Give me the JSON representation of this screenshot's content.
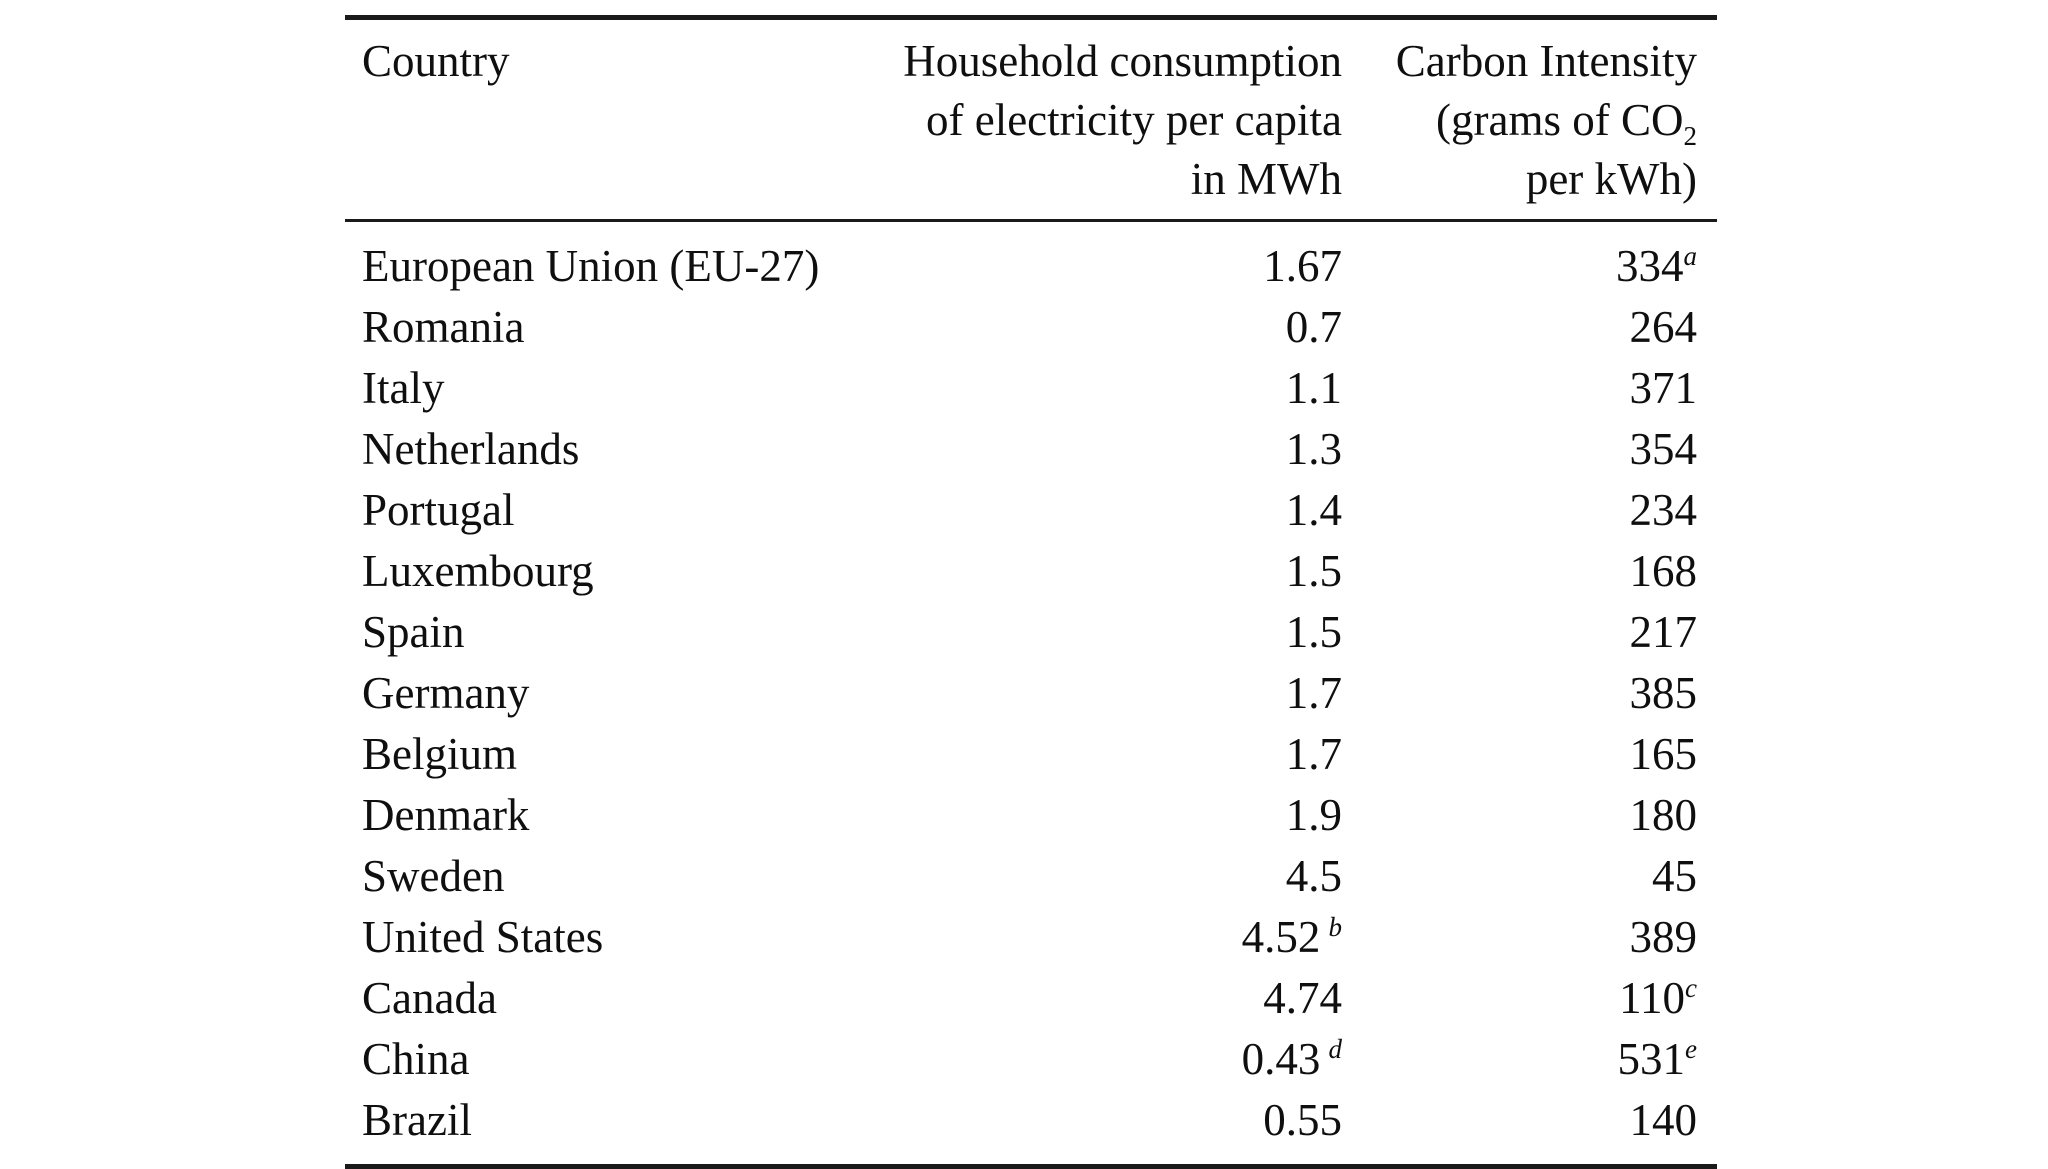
{
  "page": {
    "background_color": "#ffffff",
    "text_color": "#0f0f0f",
    "rule_color": "#1a1a1a"
  },
  "table": {
    "header": {
      "country": "Country",
      "consumption_lines": [
        "Household consumption",
        "of electricity per capita",
        "in MWh"
      ],
      "intensity_line1": "Carbon Intensity",
      "intensity_line2_pre": "(grams of CO",
      "intensity_line2_sub": "2",
      "intensity_line3": "per kWh)"
    },
    "rows": [
      {
        "country": "European Union (EU-27)",
        "consumption": "1.67",
        "consumption_note": "",
        "intensity": "334",
        "intensity_note": "a"
      },
      {
        "country": "Romania",
        "consumption": "0.7",
        "consumption_note": "",
        "intensity": "264",
        "intensity_note": ""
      },
      {
        "country": "Italy",
        "consumption": "1.1",
        "consumption_note": "",
        "intensity": "371",
        "intensity_note": ""
      },
      {
        "country": "Netherlands",
        "consumption": "1.3",
        "consumption_note": "",
        "intensity": "354",
        "intensity_note": ""
      },
      {
        "country": "Portugal",
        "consumption": "1.4",
        "consumption_note": "",
        "intensity": "234",
        "intensity_note": ""
      },
      {
        "country": "Luxembourg",
        "consumption": "1.5",
        "consumption_note": "",
        "intensity": "168",
        "intensity_note": ""
      },
      {
        "country": "Spain",
        "consumption": "1.5",
        "consumption_note": "",
        "intensity": "217",
        "intensity_note": ""
      },
      {
        "country": "Germany",
        "consumption": "1.7",
        "consumption_note": "",
        "intensity": "385",
        "intensity_note": ""
      },
      {
        "country": "Belgium",
        "consumption": "1.7",
        "consumption_note": "",
        "intensity": "165",
        "intensity_note": ""
      },
      {
        "country": "Denmark",
        "consumption": "1.9",
        "consumption_note": "",
        "intensity": "180",
        "intensity_note": ""
      },
      {
        "country": "Sweden",
        "consumption": "4.5",
        "consumption_note": "",
        "intensity": "45",
        "intensity_note": ""
      },
      {
        "country": "United States",
        "consumption": "4.52",
        "consumption_note": "b",
        "intensity": "389",
        "intensity_note": ""
      },
      {
        "country": "Canada",
        "consumption": "4.74",
        "consumption_note": "",
        "intensity": "110",
        "intensity_note": "c"
      },
      {
        "country": "China",
        "consumption": "0.43",
        "consumption_note": "d",
        "intensity": "531",
        "intensity_note": "e"
      },
      {
        "country": "Brazil",
        "consumption": "0.55",
        "consumption_note": "",
        "intensity": "140",
        "intensity_note": ""
      }
    ]
  }
}
